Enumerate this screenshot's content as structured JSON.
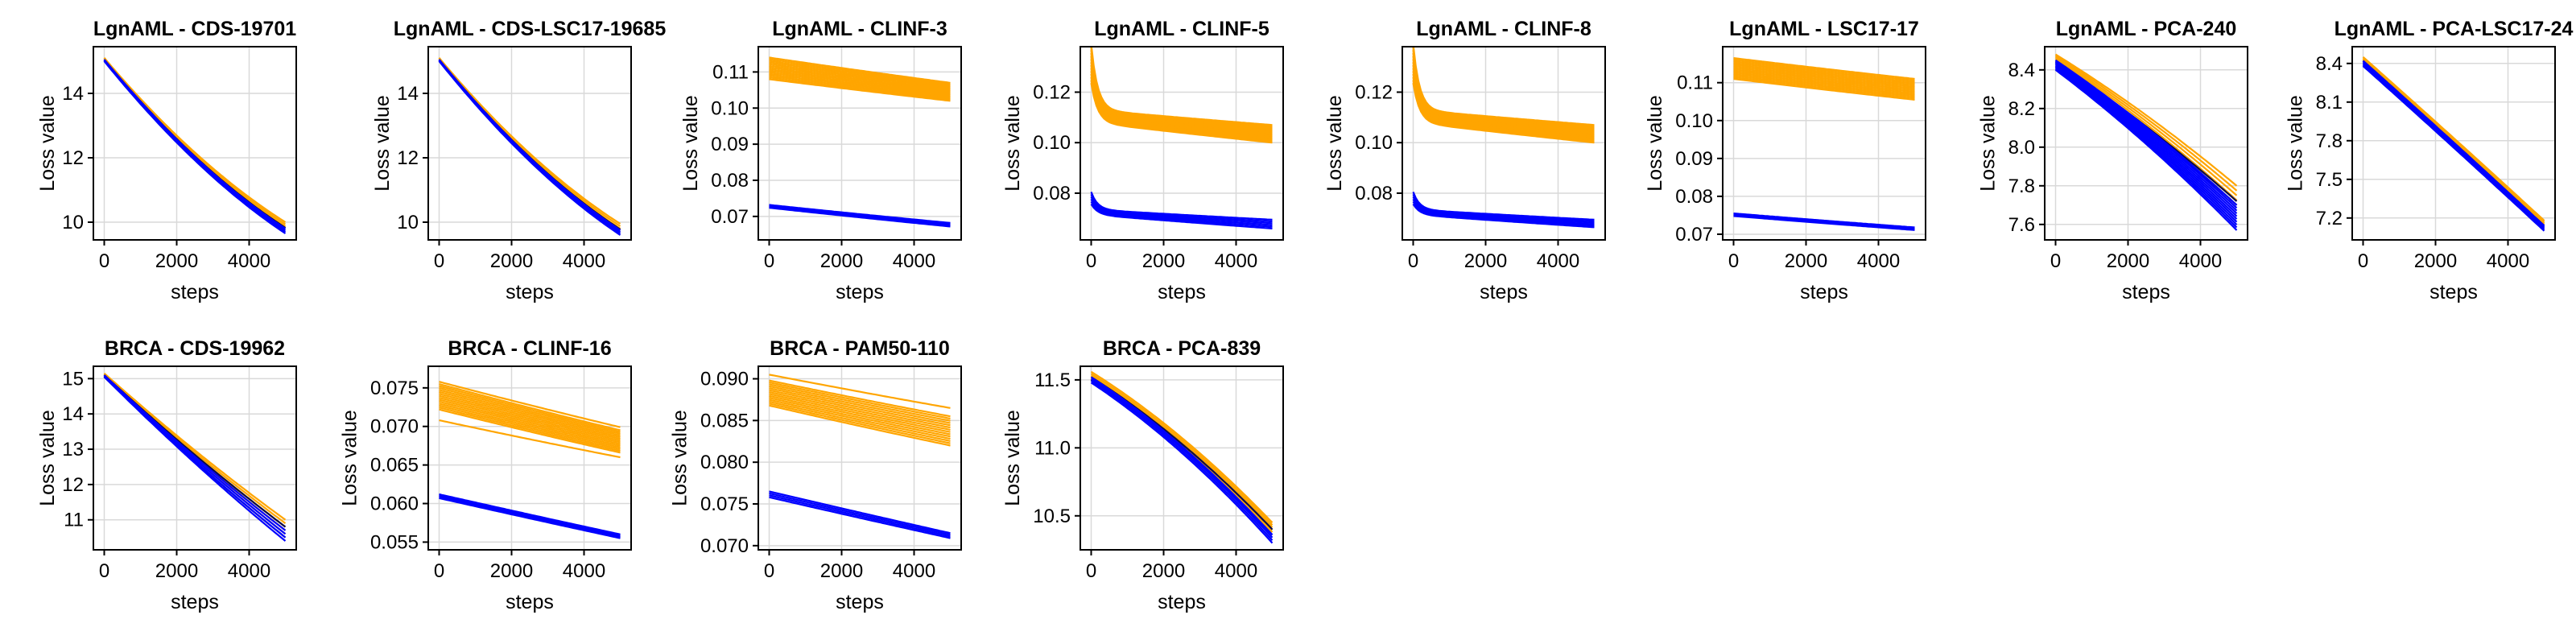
{
  "colors": {
    "orange": "#FFA500",
    "blue": "#0000FF",
    "navy": "#0b0b4a",
    "grid": "#d9d9d9"
  },
  "chart_data": [
    {
      "type": "line",
      "title": "LgnAML - CDS-19701",
      "xlabel": "steps",
      "ylabel": "Loss value",
      "xlim": [
        -300,
        5300
      ],
      "ylim": [
        9.45,
        15.45
      ],
      "xticks": [
        0,
        2000,
        4000
      ],
      "yticks": [
        10,
        12,
        14
      ],
      "ytick_labels": [
        "10",
        "12",
        "14"
      ],
      "grid": true,
      "series_groups": [
        {
          "color": "orange",
          "start": [
            15.1,
            15.1
          ],
          "end": [
            9.8,
            10.0
          ],
          "curvature": 0.3,
          "dip": 0,
          "count": 4
        },
        {
          "color": "navy",
          "start": [
            15.05,
            15.05
          ],
          "end": [
            9.8,
            9.85
          ],
          "curvature": 0.3,
          "dip": 0,
          "count": 1
        },
        {
          "color": "blue",
          "start": [
            15.0,
            15.05
          ],
          "end": [
            9.65,
            9.8
          ],
          "curvature": 0.3,
          "dip": 0,
          "count": 4
        }
      ]
    },
    {
      "type": "line",
      "title": "LgnAML - CDS-LSC17-19685",
      "xlabel": "steps",
      "ylabel": "Loss value",
      "xlim": [
        -300,
        5300
      ],
      "ylim": [
        9.45,
        15.45
      ],
      "xticks": [
        0,
        2000,
        4000
      ],
      "yticks": [
        10,
        12,
        14
      ],
      "ytick_labels": [
        "10",
        "12",
        "14"
      ],
      "grid": true,
      "series_groups": [
        {
          "color": "orange",
          "start": [
            15.1,
            15.1
          ],
          "end": [
            9.8,
            9.95
          ],
          "curvature": 0.3,
          "dip": 0,
          "count": 3
        },
        {
          "color": "navy",
          "start": [
            15.05,
            15.05
          ],
          "end": [
            9.75,
            9.8
          ],
          "curvature": 0.3,
          "dip": 0,
          "count": 1
        },
        {
          "color": "blue",
          "start": [
            15.0,
            15.05
          ],
          "end": [
            9.6,
            9.75
          ],
          "curvature": 0.3,
          "dip": 0,
          "count": 4
        }
      ]
    },
    {
      "type": "line",
      "title": "LgnAML - CLINF-3",
      "xlabel": "steps",
      "ylabel": "Loss value",
      "xlim": [
        -300,
        5300
      ],
      "ylim": [
        0.0635,
        0.117
      ],
      "xticks": [
        0,
        2000,
        4000
      ],
      "yticks": [
        0.07,
        0.08,
        0.09,
        0.1,
        0.11
      ],
      "ytick_labels": [
        "0.07",
        "0.08",
        "0.09",
        "0.10",
        "0.11"
      ],
      "grid": true,
      "series_groups": [
        {
          "color": "orange",
          "start": [
            0.108,
            0.114
          ],
          "end": [
            0.102,
            0.107
          ],
          "curvature": 0.05,
          "dip": 0,
          "count": 14
        },
        {
          "color": "blue",
          "start": [
            0.0724,
            0.0732
          ],
          "end": [
            0.0672,
            0.0682
          ],
          "curvature": 0.05,
          "dip": 0,
          "count": 4
        }
      ]
    },
    {
      "type": "line",
      "title": "LgnAML - CLINF-5",
      "xlabel": "steps",
      "ylabel": "Loss value",
      "xlim": [
        -300,
        5300
      ],
      "ylim": [
        0.0615,
        0.138
      ],
      "xticks": [
        0,
        2000,
        4000
      ],
      "yticks": [
        0.08,
        0.1,
        0.12
      ],
      "ytick_labels": [
        "0.08",
        "0.10",
        "0.12"
      ],
      "grid": true,
      "series_groups": [
        {
          "color": "orange",
          "start": [
            0.108,
            0.113
          ],
          "end": [
            0.1,
            0.107
          ],
          "curvature": 0.05,
          "dip": 0.026,
          "count": 14
        },
        {
          "color": "blue",
          "start": [
            0.0715,
            0.0735
          ],
          "end": [
            0.066,
            0.0695
          ],
          "curvature": 0.05,
          "dip": 0.007,
          "count": 6
        }
      ]
    },
    {
      "type": "line",
      "title": "LgnAML - CLINF-8",
      "xlabel": "steps",
      "ylabel": "Loss value",
      "xlim": [
        -300,
        5300
      ],
      "ylim": [
        0.0615,
        0.138
      ],
      "xticks": [
        0,
        2000,
        4000
      ],
      "yticks": [
        0.08,
        0.1,
        0.12
      ],
      "ytick_labels": [
        "0.08",
        "0.10",
        "0.12"
      ],
      "grid": true,
      "series_groups": [
        {
          "color": "orange",
          "start": [
            0.108,
            0.113
          ],
          "end": [
            0.1,
            0.107
          ],
          "curvature": 0.05,
          "dip": 0.026,
          "count": 14
        },
        {
          "color": "blue",
          "start": [
            0.0715,
            0.0735
          ],
          "end": [
            0.0665,
            0.0695
          ],
          "curvature": 0.05,
          "dip": 0.007,
          "count": 6
        }
      ]
    },
    {
      "type": "line",
      "title": "LgnAML - LSC17-17",
      "xlabel": "steps",
      "ylabel": "Loss value",
      "xlim": [
        -300,
        5300
      ],
      "ylim": [
        0.0685,
        0.1195
      ],
      "xticks": [
        0,
        2000,
        4000
      ],
      "yticks": [
        0.07,
        0.08,
        0.09,
        0.1,
        0.11
      ],
      "ytick_labels": [
        "0.07",
        "0.08",
        "0.09",
        "0.10",
        "0.11"
      ],
      "grid": true,
      "series_groups": [
        {
          "color": "orange",
          "start": [
            0.111,
            0.1165
          ],
          "end": [
            0.1055,
            0.111
          ],
          "curvature": 0.05,
          "dip": 0,
          "count": 14
        },
        {
          "color": "blue",
          "start": [
            0.0748,
            0.0755
          ],
          "end": [
            0.0711,
            0.0718
          ],
          "curvature": 0.05,
          "dip": 0,
          "count": 3
        }
      ]
    },
    {
      "type": "line",
      "title": "LgnAML - PCA-240",
      "xlabel": "steps",
      "ylabel": "Loss value",
      "xlim": [
        -300,
        5300
      ],
      "ylim": [
        7.52,
        8.52
      ],
      "xticks": [
        0,
        2000,
        4000
      ],
      "yticks": [
        7.6,
        7.8,
        8.0,
        8.2,
        8.4
      ],
      "ytick_labels": [
        "7.6",
        "7.8",
        "8.0",
        "8.2",
        "8.4"
      ],
      "grid": true,
      "series_groups": [
        {
          "color": "orange",
          "start": [
            8.45,
            8.48
          ],
          "end": [
            7.7,
            7.8
          ],
          "curvature": -0.15,
          "dip": 0,
          "count": 5
        },
        {
          "color": "navy",
          "start": [
            8.44,
            8.44
          ],
          "end": [
            7.7,
            7.72
          ],
          "curvature": -0.15,
          "dip": 0,
          "count": 2
        },
        {
          "color": "blue",
          "start": [
            8.4,
            8.45
          ],
          "end": [
            7.57,
            7.7
          ],
          "curvature": -0.15,
          "dip": 0,
          "count": 10
        }
      ]
    },
    {
      "type": "line",
      "title": "LgnAML - PCA-LSC17-24",
      "xlabel": "steps",
      "ylabel": "Loss value",
      "xlim": [
        -300,
        5300
      ],
      "ylim": [
        7.03,
        8.53
      ],
      "xticks": [
        0,
        2000,
        4000
      ],
      "yticks": [
        7.2,
        7.5,
        7.8,
        8.1,
        8.4
      ],
      "ytick_labels": [
        "7.2",
        "7.5",
        "7.8",
        "8.1",
        "8.4"
      ],
      "grid": true,
      "series_groups": [
        {
          "color": "orange",
          "start": [
            8.42,
            8.45
          ],
          "end": [
            7.15,
            7.18
          ],
          "curvature": -0.02,
          "dip": 0,
          "count": 4
        },
        {
          "color": "navy",
          "start": [
            8.42,
            8.42
          ],
          "end": [
            7.14,
            7.14
          ],
          "curvature": -0.02,
          "dip": 0,
          "count": 1
        },
        {
          "color": "blue",
          "start": [
            8.38,
            8.42
          ],
          "end": [
            7.1,
            7.14
          ],
          "curvature": -0.02,
          "dip": 0,
          "count": 5
        }
      ]
    },
    {
      "type": "line",
      "title": "BRCA - CDS-19962",
      "xlabel": "steps",
      "ylabel": "Loss value",
      "xlim": [
        -300,
        5300
      ],
      "ylim": [
        10.15,
        15.35
      ],
      "xticks": [
        0,
        2000,
        4000
      ],
      "yticks": [
        11,
        12,
        13,
        14,
        15
      ],
      "ytick_labels": [
        "11",
        "12",
        "13",
        "14",
        "15"
      ],
      "grid": true,
      "series_groups": [
        {
          "color": "orange",
          "start": [
            15.1,
            15.15
          ],
          "end": [
            10.6,
            11.0
          ],
          "curvature": 0.1,
          "dip": 0,
          "count": 5
        },
        {
          "color": "navy",
          "start": [
            15.05,
            15.1
          ],
          "end": [
            10.5,
            10.8
          ],
          "curvature": 0.1,
          "dip": 0,
          "count": 2
        },
        {
          "color": "blue",
          "start": [
            15.05,
            15.1
          ],
          "end": [
            10.4,
            10.7
          ],
          "curvature": 0.1,
          "dip": 0,
          "count": 4
        }
      ]
    },
    {
      "type": "line",
      "title": "BRCA - CLINF-16",
      "xlabel": "steps",
      "ylabel": "Loss value",
      "xlim": [
        -300,
        5300
      ],
      "ylim": [
        0.054,
        0.0778
      ],
      "xticks": [
        0,
        2000,
        4000
      ],
      "yticks": [
        0.055,
        0.06,
        0.065,
        0.07,
        0.075
      ],
      "ytick_labels": [
        "0.055",
        "0.060",
        "0.065",
        "0.070",
        "0.075"
      ],
      "grid": true,
      "series_groups": [
        {
          "color": "orange",
          "start": [
            0.0722,
            0.0755
          ],
          "end": [
            0.0666,
            0.0695
          ],
          "curvature": 0.05,
          "dip": 0,
          "count": 14
        },
        {
          "color": "orange",
          "start": [
            0.0708,
            0.0708
          ],
          "end": [
            0.066,
            0.066
          ],
          "curvature": 0.05,
          "dip": 0,
          "count": 1
        },
        {
          "color": "orange",
          "start": [
            0.0758,
            0.0758
          ],
          "end": [
            0.0699,
            0.0699
          ],
          "curvature": 0.05,
          "dip": 0,
          "count": 1
        },
        {
          "color": "blue",
          "start": [
            0.0607,
            0.0612
          ],
          "end": [
            0.0555,
            0.056
          ],
          "curvature": 0.02,
          "dip": 0,
          "count": 4
        }
      ]
    },
    {
      "type": "line",
      "title": "BRCA - PAM50-110",
      "xlabel": "steps",
      "ylabel": "Loss value",
      "xlim": [
        -300,
        5300
      ],
      "ylim": [
        0.0695,
        0.0915
      ],
      "xticks": [
        0,
        2000,
        4000
      ],
      "yticks": [
        0.07,
        0.075,
        0.08,
        0.085,
        0.09
      ],
      "ytick_labels": [
        "0.070",
        "0.075",
        "0.080",
        "0.085",
        "0.090"
      ],
      "grid": true,
      "series_groups": [
        {
          "color": "orange",
          "start": [
            0.0868,
            0.0898
          ],
          "end": [
            0.082,
            0.0855
          ],
          "curvature": 0.05,
          "dip": 0,
          "count": 14
        },
        {
          "color": "orange",
          "start": [
            0.0905,
            0.0905
          ],
          "end": [
            0.0865,
            0.0865
          ],
          "curvature": 0.05,
          "dip": 0,
          "count": 1
        },
        {
          "color": "blue",
          "start": [
            0.0758,
            0.0765
          ],
          "end": [
            0.0709,
            0.0715
          ],
          "curvature": 0.02,
          "dip": 0,
          "count": 4
        }
      ]
    },
    {
      "type": "line",
      "title": "BRCA - PCA-839",
      "xlabel": "steps",
      "ylabel": "Loss value",
      "xlim": [
        -300,
        5300
      ],
      "ylim": [
        10.25,
        11.6
      ],
      "xticks": [
        0,
        2000,
        4000
      ],
      "yticks": [
        10.5,
        11.0,
        11.5
      ],
      "ytick_labels": [
        "10.5",
        "11.0",
        "11.5"
      ],
      "grid": true,
      "series_groups": [
        {
          "color": "orange",
          "start": [
            11.5,
            11.56
          ],
          "end": [
            10.38,
            10.45
          ],
          "curvature": -0.25,
          "dip": 0,
          "count": 5
        },
        {
          "color": "navy",
          "start": [
            11.5,
            11.52
          ],
          "end": [
            10.36,
            10.4
          ],
          "curvature": -0.25,
          "dip": 0,
          "count": 2
        },
        {
          "color": "blue",
          "start": [
            11.48,
            11.52
          ],
          "end": [
            10.3,
            10.36
          ],
          "curvature": -0.25,
          "dip": 0,
          "count": 4
        }
      ]
    }
  ]
}
